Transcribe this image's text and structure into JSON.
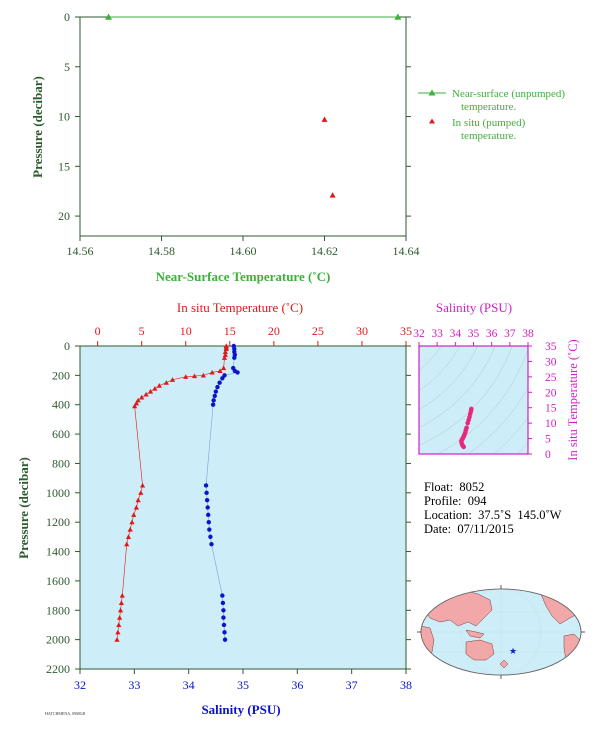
{
  "colors": {
    "axis_dark": "#2f5a2f",
    "near_surface": "#3cb03c",
    "insitu": "#e01818",
    "salinity": "#0a14c8",
    "ts_accent": "#d21ec8",
    "panel_bg": "#cdeef8",
    "ts_points": "#e8287a"
  },
  "chart_data": [
    {
      "type": "scatter",
      "name": "near-surface-panel",
      "xlabel": "Near-Surface Temperature (˚C)",
      "ylabel": "Pressure (decibar)",
      "xlim": [
        14.56,
        14.64
      ],
      "ylim": [
        22,
        0
      ],
      "xticks": [
        "14.56",
        "14.58",
        "14.60",
        "14.62",
        "14.64"
      ],
      "yticks": [
        "0",
        "5",
        "10",
        "15",
        "20"
      ],
      "legend": {
        "placement": "right",
        "near_surface_label_1": "Near-surface (unpumped)",
        "near_surface_label_2": "temperature.",
        "insitu_label_1": "In situ (pumped)",
        "insitu_label_2": "temperature."
      },
      "series": [
        {
          "name": "Near-surface (unpumped) temperature.",
          "points": [
            [
              14.567,
              0
            ],
            [
              14.638,
              0
            ]
          ]
        },
        {
          "name": "In situ (pumped) temperature.",
          "points": [
            [
              14.62,
              10.3
            ],
            [
              14.622,
              17.9
            ]
          ]
        }
      ]
    },
    {
      "type": "line",
      "name": "profile-panel",
      "title_top": "In situ Temperature (˚C)",
      "xlabel": "Salinity (PSU)",
      "ylabel": "Pressure (decibar)",
      "ylim": [
        2200,
        0
      ],
      "temp_xlim": [
        -2,
        35
      ],
      "sal_xlim": [
        32,
        38
      ],
      "temp_ticks": [
        "0",
        "5",
        "10",
        "15",
        "20",
        "25",
        "30",
        "35"
      ],
      "sal_ticks": [
        "32",
        "33",
        "34",
        "35",
        "36",
        "37",
        "38"
      ],
      "p_ticks": [
        "0",
        "200",
        "400",
        "600",
        "800",
        "1000",
        "1200",
        "1400",
        "1600",
        "1800",
        "2000",
        "2200"
      ],
      "temperature": [
        [
          14.6,
          0
        ],
        [
          14.6,
          10
        ],
        [
          14.6,
          20
        ],
        [
          14.5,
          40
        ],
        [
          14.5,
          60
        ],
        [
          14.4,
          80
        ],
        [
          14.3,
          150
        ],
        [
          13.9,
          170
        ],
        [
          13.0,
          180
        ],
        [
          12.0,
          200
        ],
        [
          11.0,
          205
        ],
        [
          10.0,
          210
        ],
        [
          8.5,
          230
        ],
        [
          7.8,
          250
        ],
        [
          7.0,
          270
        ],
        [
          6.5,
          290
        ],
        [
          6.0,
          310
        ],
        [
          5.5,
          330
        ],
        [
          5.0,
          350
        ],
        [
          4.6,
          370
        ],
        [
          4.4,
          390
        ],
        [
          4.2,
          410
        ],
        [
          5.1,
          950
        ],
        [
          4.9,
          1000
        ],
        [
          4.6,
          1050
        ],
        [
          4.4,
          1100
        ],
        [
          4.1,
          1150
        ],
        [
          3.9,
          1200
        ],
        [
          3.7,
          1250
        ],
        [
          3.5,
          1300
        ],
        [
          3.3,
          1350
        ],
        [
          2.8,
          1700
        ],
        [
          2.7,
          1750
        ],
        [
          2.6,
          1800
        ],
        [
          2.5,
          1850
        ],
        [
          2.4,
          1900
        ],
        [
          2.3,
          1950
        ],
        [
          2.2,
          2000
        ]
      ],
      "salinity": [
        [
          34.83,
          0
        ],
        [
          34.84,
          20
        ],
        [
          34.84,
          40
        ],
        [
          34.85,
          60
        ],
        [
          34.84,
          80
        ],
        [
          34.82,
          150
        ],
        [
          34.85,
          170
        ],
        [
          34.9,
          180
        ],
        [
          34.66,
          200
        ],
        [
          34.62,
          220
        ],
        [
          34.57,
          250
        ],
        [
          34.53,
          280
        ],
        [
          34.5,
          310
        ],
        [
          34.48,
          340
        ],
        [
          34.46,
          370
        ],
        [
          34.45,
          400
        ],
        [
          34.32,
          950
        ],
        [
          34.33,
          1000
        ],
        [
          34.34,
          1050
        ],
        [
          34.35,
          1100
        ],
        [
          34.36,
          1150
        ],
        [
          34.37,
          1200
        ],
        [
          34.38,
          1250
        ],
        [
          34.4,
          1300
        ],
        [
          34.42,
          1350
        ],
        [
          34.62,
          1700
        ],
        [
          34.63,
          1750
        ],
        [
          34.64,
          1800
        ],
        [
          34.64,
          1850
        ],
        [
          34.65,
          1900
        ],
        [
          34.66,
          1950
        ],
        [
          34.67,
          2000
        ]
      ]
    },
    {
      "type": "scatter",
      "name": "ts-diagram",
      "title": "Salinity (PSU)",
      "ylabel": "In situ Temperature (˚C)",
      "xlim": [
        32,
        38
      ],
      "ylim": [
        0,
        35
      ],
      "xticks": [
        "32",
        "33",
        "34",
        "35",
        "36",
        "37",
        "38"
      ],
      "yticks": [
        "0",
        "5",
        "10",
        "15",
        "20",
        "25",
        "30",
        "35"
      ],
      "points": [
        [
          34.88,
          14.6
        ],
        [
          34.86,
          13.9
        ],
        [
          34.82,
          13.0
        ],
        [
          34.78,
          12.0
        ],
        [
          34.73,
          11.0
        ],
        [
          34.68,
          10.0
        ],
        [
          34.62,
          8.5
        ],
        [
          34.58,
          7.8
        ],
        [
          34.55,
          7.0
        ],
        [
          34.52,
          6.5
        ],
        [
          34.48,
          6.0
        ],
        [
          34.45,
          5.5
        ],
        [
          34.4,
          5.0
        ],
        [
          34.36,
          4.6
        ],
        [
          34.33,
          4.2
        ],
        [
          34.35,
          3.5
        ],
        [
          34.38,
          3.0
        ],
        [
          34.42,
          2.6
        ],
        [
          34.46,
          2.3
        ]
      ]
    }
  ],
  "info": {
    "float_label": "Float:",
    "float_value": "8052",
    "profile_label": "Profile:",
    "profile_value": "094",
    "location_label": "Location:",
    "location_value": "37.5˚S  145.0˚W",
    "date_label": "Date:",
    "date_value": "07/11/2015"
  },
  "footer": "HATCHMENA, 09MGR"
}
